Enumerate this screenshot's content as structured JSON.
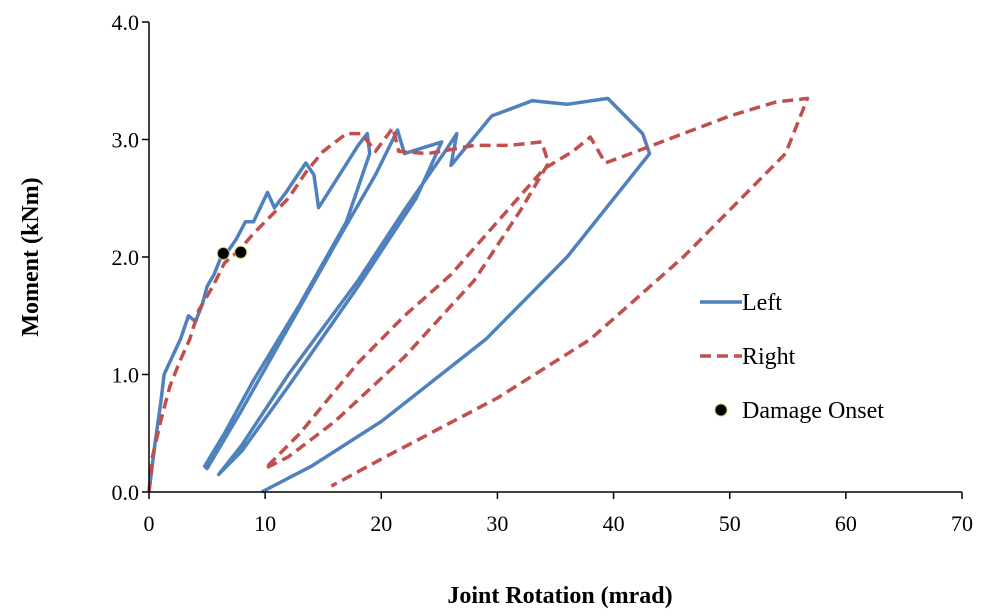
{
  "chart_data": {
    "type": "line",
    "title": "",
    "xlabel": "Joint Rotation  (mrad)",
    "ylabel": "Moment  (kNm)",
    "xlim": [
      0,
      70
    ],
    "ylim": [
      0,
      4
    ],
    "x_ticks": [
      0,
      10,
      20,
      30,
      40,
      50,
      60,
      70
    ],
    "x_tick_labels": [
      "0",
      "10",
      "20",
      "30",
      "40",
      "50",
      "60",
      "70"
    ],
    "y_ticks": [
      0,
      1,
      2,
      3,
      4
    ],
    "y_tick_labels": [
      "0.0",
      "1.0",
      "2.0",
      "3.0",
      "4.0"
    ],
    "grid": false,
    "legend_position": "right",
    "series": [
      {
        "name": "Left",
        "color": "#4f81bd",
        "style": "solid",
        "points": [
          [
            0,
            0
          ],
          [
            0.5,
            0.4
          ],
          [
            1,
            0.75
          ],
          [
            1.3,
            1.0
          ],
          [
            2,
            1.15
          ],
          [
            2.7,
            1.3
          ],
          [
            3.4,
            1.5
          ],
          [
            4,
            1.45
          ],
          [
            4.6,
            1.6
          ],
          [
            5,
            1.75
          ],
          [
            5.6,
            1.85
          ],
          [
            6.2,
            2.0
          ],
          [
            6.8,
            2.05
          ],
          [
            7.5,
            2.15
          ],
          [
            8.3,
            2.3
          ],
          [
            9,
            2.3
          ],
          [
            10.2,
            2.55
          ],
          [
            10.8,
            2.42
          ],
          [
            11.8,
            2.55
          ],
          [
            13.5,
            2.8
          ],
          [
            14.2,
            2.7
          ],
          [
            14.6,
            2.42
          ],
          [
            16.4,
            2.7
          ],
          [
            18,
            2.95
          ],
          [
            18.8,
            3.05
          ],
          [
            19,
            2.88
          ],
          [
            17,
            2.3
          ],
          [
            13,
            1.6
          ],
          [
            9,
            0.95
          ],
          [
            6.5,
            0.5
          ],
          [
            4.8,
            0.22
          ],
          [
            5,
            0.2
          ],
          [
            8,
            0.7
          ],
          [
            12,
            1.4
          ],
          [
            16,
            2.1
          ],
          [
            19.5,
            2.7
          ],
          [
            21.4,
            3.08
          ],
          [
            22,
            2.88
          ],
          [
            25.2,
            2.98
          ],
          [
            23,
            2.5
          ],
          [
            18,
            1.75
          ],
          [
            12,
            0.9
          ],
          [
            8,
            0.35
          ],
          [
            6,
            0.15
          ],
          [
            8,
            0.4
          ],
          [
            12,
            1.0
          ],
          [
            18,
            1.8
          ],
          [
            22,
            2.4
          ],
          [
            25.5,
            2.9
          ],
          [
            26.5,
            3.05
          ],
          [
            26,
            2.78
          ],
          [
            29.5,
            3.2
          ],
          [
            33,
            3.33
          ],
          [
            36,
            3.3
          ],
          [
            39.5,
            3.35
          ],
          [
            42.5,
            3.05
          ],
          [
            43.1,
            2.88
          ],
          [
            36,
            2.0
          ],
          [
            29,
            1.3
          ],
          [
            20,
            0.6
          ],
          [
            14,
            0.22
          ],
          [
            9.7,
            0.0
          ]
        ]
      },
      {
        "name": "Right",
        "color": "#c0504d",
        "style": "dashed",
        "points": [
          [
            0,
            0
          ],
          [
            0.3,
            0.3
          ],
          [
            1,
            0.6
          ],
          [
            1.8,
            0.9
          ],
          [
            2.6,
            1.1
          ],
          [
            3.5,
            1.3
          ],
          [
            4.3,
            1.55
          ],
          [
            5.5,
            1.75
          ],
          [
            6.5,
            1.95
          ],
          [
            7.7,
            2.05
          ],
          [
            9,
            2.2
          ],
          [
            10.5,
            2.35
          ],
          [
            12,
            2.5
          ],
          [
            13.5,
            2.72
          ],
          [
            15,
            2.9
          ],
          [
            17,
            3.05
          ],
          [
            18.3,
            3.05
          ],
          [
            19.5,
            2.9
          ],
          [
            21,
            3.1
          ],
          [
            21.5,
            2.9
          ],
          [
            24,
            2.88
          ],
          [
            28,
            2.95
          ],
          [
            31,
            2.95
          ],
          [
            33.8,
            2.98
          ],
          [
            34.4,
            2.8
          ],
          [
            32,
            2.4
          ],
          [
            28,
            1.8
          ],
          [
            22,
            1.15
          ],
          [
            16,
            0.6
          ],
          [
            12,
            0.3
          ],
          [
            10,
            0.2
          ],
          [
            13,
            0.5
          ],
          [
            18,
            1.1
          ],
          [
            22,
            1.5
          ],
          [
            26,
            1.85
          ],
          [
            30,
            2.3
          ],
          [
            34,
            2.75
          ],
          [
            36.5,
            2.9
          ],
          [
            38,
            3.02
          ],
          [
            39.3,
            2.8
          ],
          [
            42,
            2.9
          ],
          [
            46,
            3.05
          ],
          [
            50,
            3.2
          ],
          [
            54,
            3.32
          ],
          [
            56.7,
            3.35
          ],
          [
            54.8,
            2.88
          ],
          [
            46,
            2.0
          ],
          [
            38,
            1.3
          ],
          [
            30,
            0.8
          ],
          [
            20,
            0.28
          ],
          [
            15.7,
            0.05
          ]
        ]
      },
      {
        "name": "Damage Onset",
        "color": "#000000",
        "style": "marker",
        "points": [
          [
            6.4,
            2.03
          ],
          [
            7.9,
            2.04
          ]
        ]
      }
    ]
  }
}
